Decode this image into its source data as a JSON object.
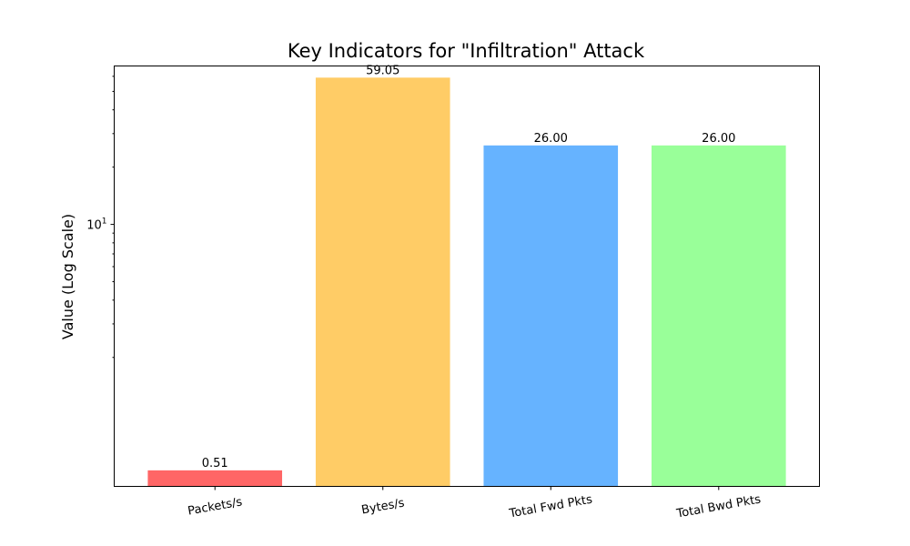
{
  "chart_data": {
    "type": "bar",
    "title": "Key Indicators for \"Infiltration\" Attack",
    "xlabel": "",
    "ylabel": "Value (Log Scale)",
    "yscale": "log",
    "ylim": [
      0.42,
      68
    ],
    "categories": [
      "Packets/s",
      "Bytes/s",
      "Total Fwd Pkts",
      "Total Bwd Pkts"
    ],
    "values": [
      0.51,
      59.05,
      26.0,
      26.0
    ],
    "data_labels": [
      "0.51",
      "59.05",
      "26.00",
      "26.00"
    ],
    "colors": [
      "#ff6666",
      "#ffcc66",
      "#66b3ff",
      "#99ff99"
    ],
    "y_major_tick": {
      "value": 10,
      "base": "10",
      "exponent": "1"
    },
    "y_minor_ticks": [
      2,
      3,
      4,
      5,
      6,
      7,
      8,
      9,
      20,
      30,
      40,
      50,
      60
    ],
    "grid": false,
    "legend": "none",
    "x_tick_rotation": "slanted"
  }
}
